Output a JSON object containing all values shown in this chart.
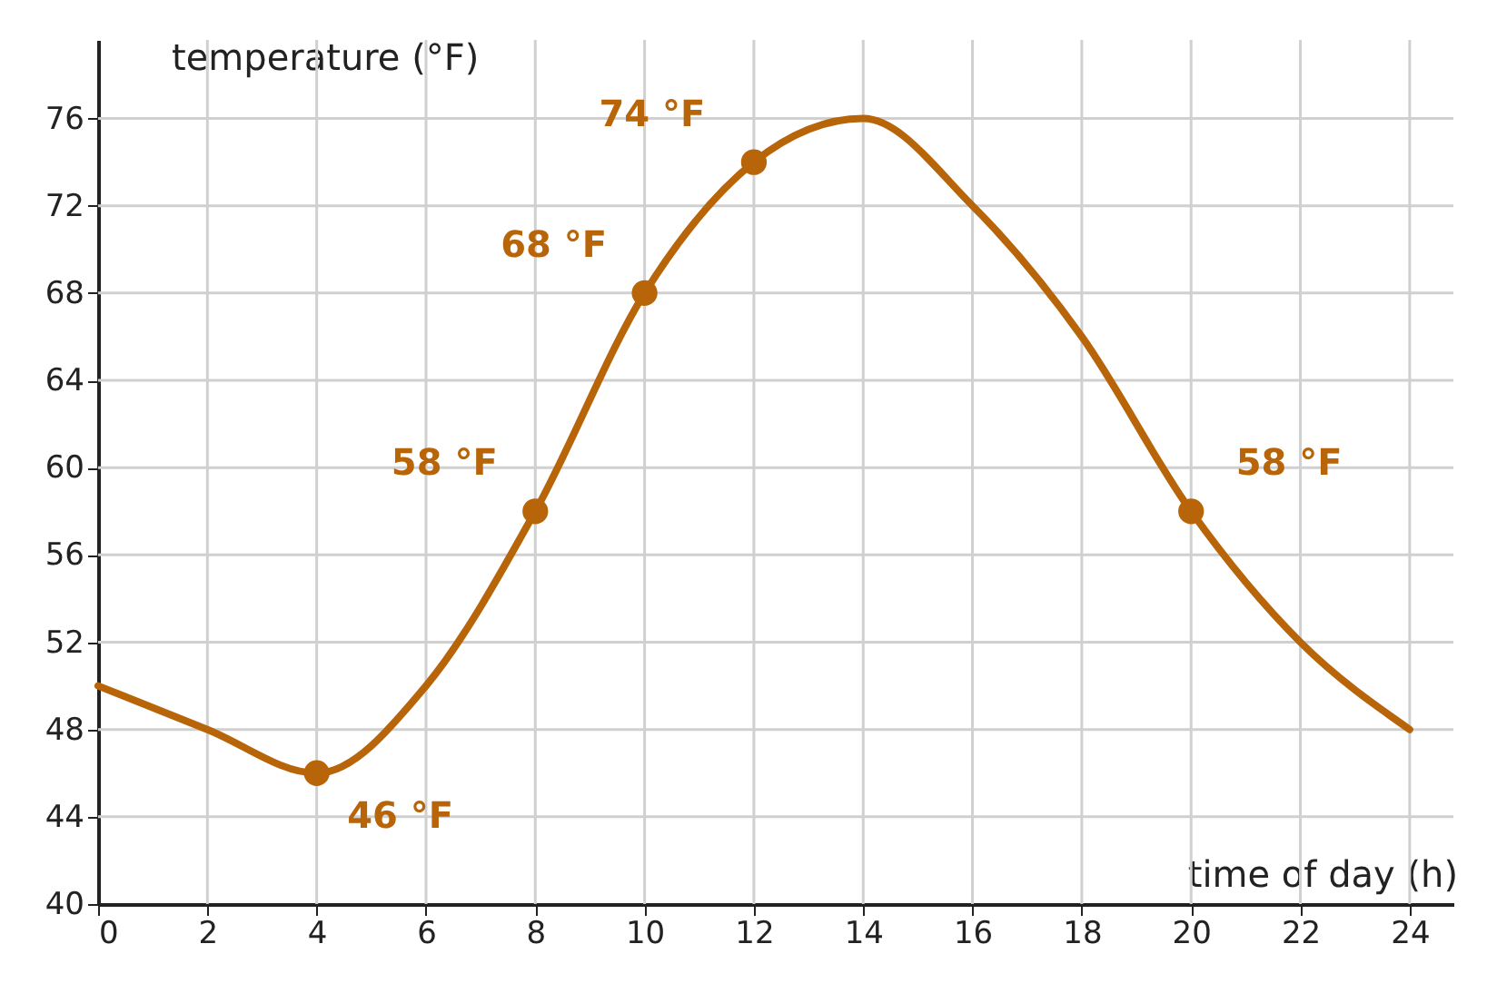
{
  "chart_data": {
    "type": "line",
    "xlabel": "time of day (h)",
    "ylabel": "temperature (°F)",
    "xlim": [
      0,
      24.8
    ],
    "ylim": [
      40,
      79.6
    ],
    "xticks": [
      0,
      2,
      4,
      6,
      8,
      10,
      12,
      14,
      16,
      18,
      20,
      22,
      24
    ],
    "yticks": [
      40,
      44,
      48,
      52,
      56,
      60,
      64,
      68,
      72,
      76
    ],
    "grid": true,
    "line_style": "solid",
    "series": [
      {
        "color": "#b8650a",
        "x": [
          0,
          2,
          4,
          6,
          8,
          10,
          12,
          14,
          16,
          18,
          20,
          22,
          24
        ],
        "values": [
          50,
          48,
          46,
          50,
          58,
          68,
          74,
          76,
          72,
          66,
          58,
          52,
          48
        ]
      },
      {
        "type": "scatter",
        "color": "#b8650a",
        "marker": "circle",
        "x": [
          4,
          8,
          10,
          12,
          20
        ],
        "values": [
          46,
          58,
          68,
          74,
          58
        ],
        "value_labels": [
          "46 °F",
          "58 °F",
          "68 °F",
          "74 °F",
          "58 °F"
        ]
      }
    ]
  }
}
